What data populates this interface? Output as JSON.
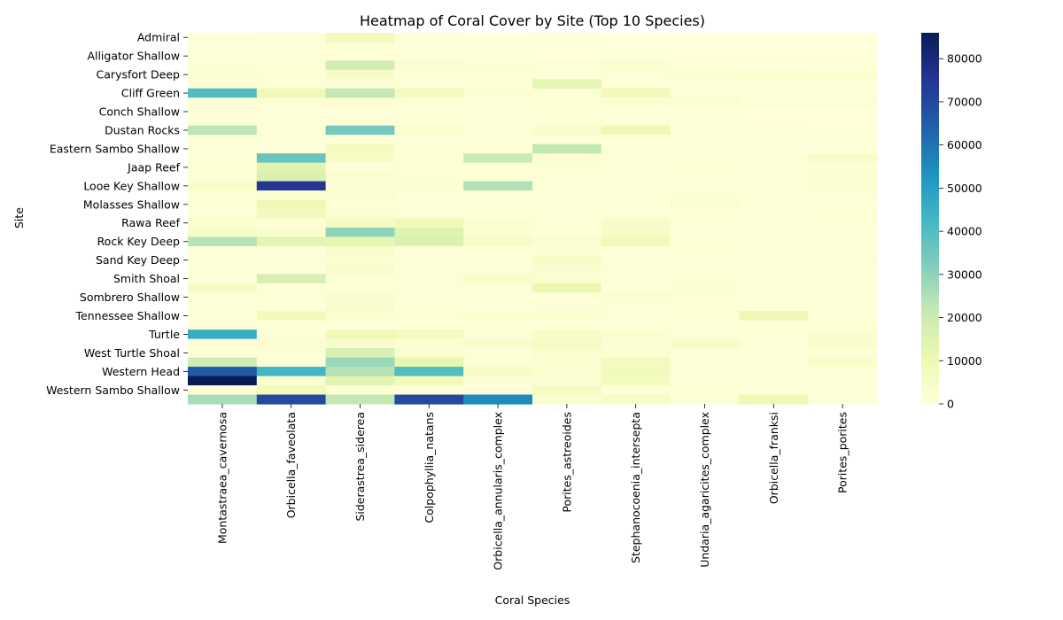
{
  "chart_data": {
    "type": "heatmap",
    "title": "Heatmap of Coral Cover by Site (Top 10 Species)",
    "xlabel": "Coral Species",
    "ylabel": "Site",
    "species": [
      "Montastraea_cavernosa",
      "Orbicella_faveolata",
      "Siderastrea_siderea",
      "Colpophyllia_natans",
      "Orbicella_annularis_complex",
      "Porites_astreoides",
      "Stephanocoenia_intersepta",
      "Undaria_agaricites_complex",
      "Orbicella_franksi",
      "Porites_porites"
    ],
    "ytick_labels": [
      "Admiral",
      "Alligator Shallow",
      "Carysfort Deep",
      "Cliff Green",
      "Conch Shallow",
      "Dustan Rocks",
      "Eastern Sambo Shallow",
      "Jaap Reef",
      "Looe Key Shallow",
      "Molasses Shallow",
      "Rawa Reef",
      "Rock Key Deep",
      "Sand Key Deep",
      "Smith Shoal",
      "Sombrero Shallow",
      "Tennessee Shallow",
      "Turtle",
      "West Turtle Shoal",
      "Western Head",
      "Western Sambo Shallow"
    ],
    "row_count": 40,
    "values": [
      [
        1000,
        500,
        8000,
        300,
        200,
        300,
        200,
        100,
        100,
        200
      ],
      [
        800,
        600,
        1500,
        400,
        300,
        200,
        200,
        100,
        100,
        100
      ],
      [
        500,
        400,
        500,
        300,
        300,
        200,
        300,
        200,
        200,
        200
      ],
      [
        900,
        700,
        18000,
        2500,
        1500,
        1000,
        3000,
        500,
        300,
        400
      ],
      [
        2000,
        1500,
        5000,
        1200,
        1500,
        1000,
        800,
        3000,
        3000,
        2000
      ],
      [
        1500,
        800,
        1000,
        800,
        500,
        13000,
        1000,
        800,
        500,
        700
      ],
      [
        40000,
        9000,
        22000,
        7000,
        2000,
        1500,
        8000,
        1000,
        800,
        600
      ],
      [
        800,
        2000,
        3000,
        800,
        600,
        1500,
        2000,
        2500,
        1000,
        800
      ],
      [
        500,
        300,
        500,
        500,
        300,
        500,
        500,
        200,
        200,
        200
      ],
      [
        500,
        700,
        600,
        500,
        300,
        800,
        800,
        300,
        200,
        200
      ],
      [
        23000,
        500,
        34000,
        3000,
        1500,
        3500,
        10000,
        300,
        300,
        200
      ],
      [
        600,
        300,
        700,
        500,
        400,
        600,
        500,
        500,
        500,
        300
      ],
      [
        500,
        400,
        7000,
        500,
        600,
        22000,
        500,
        300,
        300,
        400
      ],
      [
        500,
        36000,
        5000,
        1500,
        20000,
        2000,
        500,
        1500,
        600,
        4000
      ],
      [
        1500,
        14000,
        1000,
        800,
        600,
        800,
        600,
        500,
        500,
        1500
      ],
      [
        1000,
        16000,
        2500,
        1500,
        1000,
        800,
        600,
        700,
        1200,
        2000
      ],
      [
        4000,
        75000,
        1500,
        2000,
        25000,
        500,
        500,
        500,
        800,
        2500
      ],
      [
        1500,
        2000,
        3000,
        800,
        800,
        600,
        500,
        1500,
        500,
        1000
      ],
      [
        500,
        10000,
        1500,
        500,
        800,
        700,
        500,
        2500,
        1000,
        700
      ],
      [
        800,
        7000,
        2500,
        1000,
        600,
        700,
        800,
        500,
        400,
        1500
      ],
      [
        3000,
        1500,
        6000,
        9000,
        2500,
        1000,
        4000,
        800,
        500,
        1000
      ],
      [
        5000,
        3500,
        30000,
        15000,
        2000,
        1500,
        5000,
        600,
        400,
        600
      ],
      [
        24000,
        14000,
        12000,
        16000,
        5000,
        2500,
        9000,
        1500,
        800,
        600
      ],
      [
        500,
        600,
        4000,
        600,
        600,
        1500,
        600,
        500,
        300,
        500
      ],
      [
        500,
        800,
        2000,
        1000,
        600,
        5000,
        700,
        1000,
        500,
        800
      ],
      [
        500,
        500,
        4000,
        800,
        800,
        2500,
        800,
        700,
        400,
        500
      ],
      [
        1000,
        17000,
        1500,
        800,
        4000,
        3000,
        500,
        1500,
        500,
        500
      ],
      [
        6000,
        800,
        1000,
        1000,
        800,
        11000,
        700,
        2000,
        600,
        500
      ],
      [
        600,
        1000,
        2500,
        1000,
        800,
        1000,
        2500,
        1500,
        400,
        500
      ],
      [
        800,
        600,
        4000,
        800,
        600,
        800,
        1000,
        1000,
        600,
        500
      ],
      [
        700,
        8000,
        2000,
        1500,
        3000,
        3000,
        800,
        1500,
        10000,
        700
      ],
      [
        600,
        700,
        600,
        700,
        600,
        600,
        500,
        1000,
        600,
        500
      ],
      [
        46000,
        700,
        9000,
        7000,
        1000,
        5000,
        3000,
        800,
        700,
        2500
      ],
      [
        900,
        2000,
        4000,
        2500,
        4000,
        6000,
        2000,
        5000,
        1000,
        3500
      ],
      [
        800,
        1500,
        17000,
        2500,
        1000,
        3000,
        2000,
        800,
        500,
        1000
      ],
      [
        19000,
        1000,
        28000,
        12000,
        1500,
        2000,
        7000,
        600,
        400,
        3500
      ],
      [
        66000,
        43000,
        24000,
        40000,
        5000,
        3000,
        8000,
        800,
        400,
        500
      ],
      [
        86000,
        3000,
        14000,
        8000,
        1000,
        1500,
        7000,
        500,
        300,
        400
      ],
      [
        800,
        8000,
        1500,
        1000,
        1000,
        6000,
        1000,
        1500,
        700,
        500
      ],
      [
        26000,
        70000,
        22000,
        70000,
        55000,
        3000,
        5000,
        1500,
        10000,
        500
      ]
    ],
    "colorbar": {
      "min": 0,
      "max": 86000,
      "ticks": [
        "0",
        "10000",
        "20000",
        "30000",
        "40000",
        "50000",
        "60000",
        "70000",
        "80000"
      ],
      "colors": [
        "#ffffd9",
        "#edf8b1",
        "#c7e9b4",
        "#7fcdbb",
        "#41b6c4",
        "#1d91c0",
        "#225ea8",
        "#253494",
        "#081d58"
      ]
    }
  }
}
